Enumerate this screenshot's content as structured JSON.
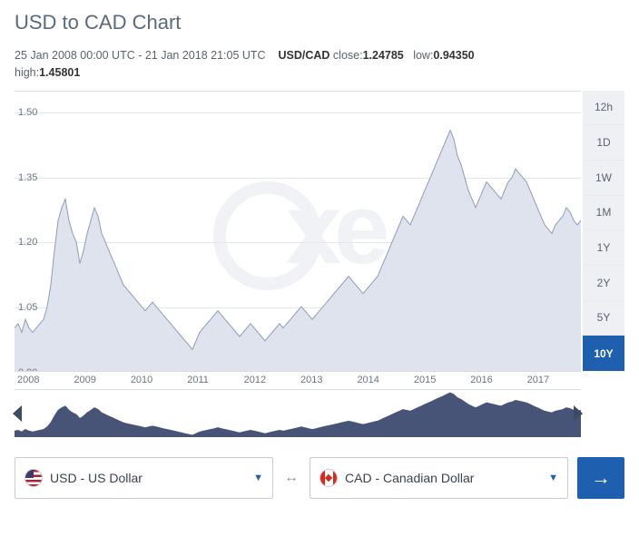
{
  "title": "USD to CAD Chart",
  "meta": {
    "from_ts": "25 Jan 2008 00:00 UTC",
    "to_ts": "21 Jan 2018 21:05 UTC",
    "pair_label": "USD/CAD",
    "close_label": "close:",
    "close_value": "1.24785",
    "low_label": "low:",
    "low_value": "0.94350",
    "high_label": "high:",
    "high_value": "1.45801"
  },
  "chart": {
    "type": "area",
    "ylim": [
      0.9,
      1.55
    ],
    "yticks": [
      0.9,
      1.05,
      1.2,
      1.35,
      1.5
    ],
    "xlabels": [
      "2008",
      "2009",
      "2010",
      "2011",
      "2012",
      "2013",
      "2014",
      "2015",
      "2016",
      "2017"
    ],
    "line_color": "#8f9bb8",
    "fill_color": "#dfe3ee",
    "grid_color": "#e3e6ec",
    "background_color": "#ffffff",
    "watermark_color": "#f0f2f6",
    "series": [
      1.0,
      1.01,
      0.99,
      1.02,
      1.0,
      0.99,
      1.0,
      1.01,
      1.02,
      1.05,
      1.1,
      1.18,
      1.25,
      1.28,
      1.3,
      1.25,
      1.22,
      1.2,
      1.15,
      1.18,
      1.22,
      1.25,
      1.28,
      1.26,
      1.22,
      1.2,
      1.18,
      1.16,
      1.14,
      1.12,
      1.1,
      1.09,
      1.08,
      1.07,
      1.06,
      1.05,
      1.04,
      1.05,
      1.06,
      1.05,
      1.04,
      1.03,
      1.02,
      1.01,
      1.0,
      0.99,
      0.98,
      0.97,
      0.96,
      0.95,
      0.97,
      0.99,
      1.0,
      1.01,
      1.02,
      1.03,
      1.04,
      1.03,
      1.02,
      1.01,
      1.0,
      0.99,
      0.98,
      0.99,
      1.0,
      1.01,
      1.0,
      0.99,
      0.98,
      0.97,
      0.98,
      0.99,
      1.0,
      1.01,
      1.0,
      1.01,
      1.02,
      1.03,
      1.04,
      1.05,
      1.04,
      1.03,
      1.02,
      1.03,
      1.04,
      1.05,
      1.06,
      1.07,
      1.08,
      1.09,
      1.1,
      1.11,
      1.12,
      1.11,
      1.1,
      1.09,
      1.08,
      1.09,
      1.1,
      1.11,
      1.12,
      1.14,
      1.16,
      1.18,
      1.2,
      1.22,
      1.24,
      1.26,
      1.25,
      1.24,
      1.26,
      1.28,
      1.3,
      1.32,
      1.34,
      1.36,
      1.38,
      1.4,
      1.42,
      1.44,
      1.46,
      1.44,
      1.4,
      1.38,
      1.35,
      1.32,
      1.3,
      1.28,
      1.3,
      1.32,
      1.34,
      1.33,
      1.32,
      1.31,
      1.3,
      1.32,
      1.34,
      1.35,
      1.37,
      1.36,
      1.35,
      1.34,
      1.32,
      1.3,
      1.28,
      1.26,
      1.24,
      1.23,
      1.22,
      1.24,
      1.25,
      1.26,
      1.28,
      1.27,
      1.25,
      1.24,
      1.25
    ]
  },
  "ranges": {
    "options": [
      "12h",
      "1D",
      "1W",
      "1M",
      "1Y",
      "2Y",
      "5Y",
      "10Y"
    ],
    "active": "10Y"
  },
  "mini": {
    "fill_color": "#475477",
    "line_color": "#475477"
  },
  "selectors": {
    "from": {
      "code": "USD",
      "label": "USD - US Dollar",
      "flag": "us"
    },
    "to": {
      "code": "CAD",
      "label": "CAD - Canadian Dollar",
      "flag": "ca"
    }
  },
  "colors": {
    "accent": "#1f5fb0",
    "text_muted": "#5a6a7a",
    "range_bg": "#eef0f4"
  }
}
